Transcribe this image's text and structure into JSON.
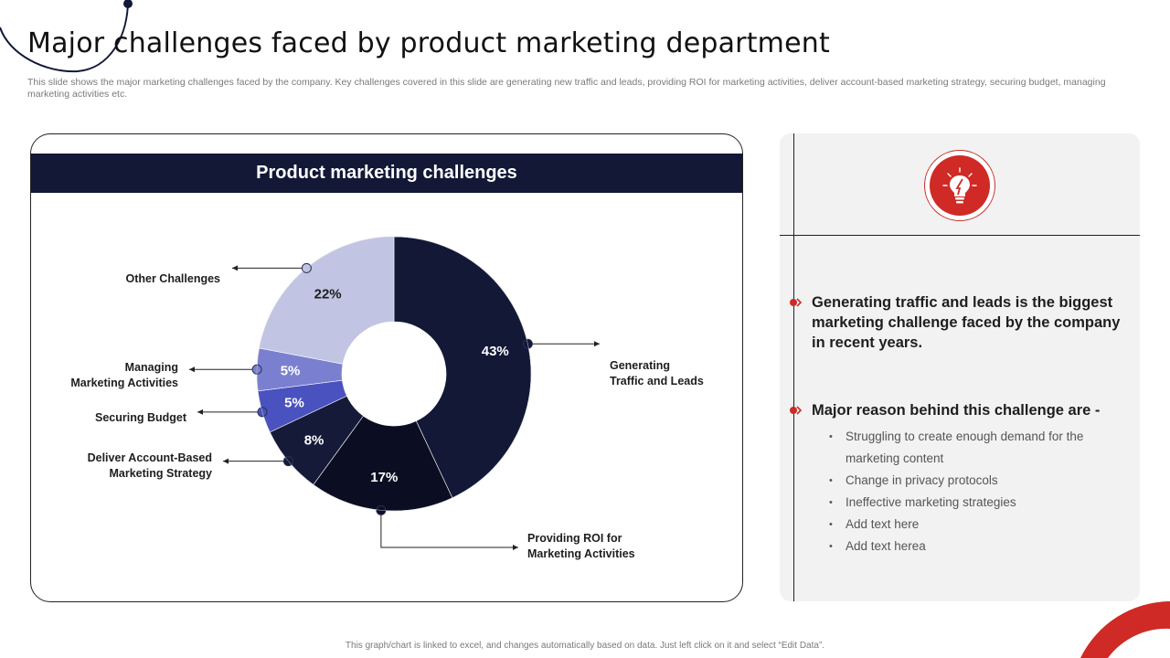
{
  "slide": {
    "title": "Major challenges faced by product marketing department",
    "subtitle": "This slide shows the major marketing challenges faced by the company. Key challenges covered in this slide are generating new traffic and leads, providing ROI  for marketing activities, deliver account-based marketing strategy, securing budget, managing marketing  activities etc.",
    "footer": "This graph/chart is linked to excel, and changes automatically based on data. Just left click on it and select “Edit Data”."
  },
  "colors": {
    "navy": "#121836",
    "dark": "#0b0e22",
    "accent_red": "#cf2a26",
    "lavender": "#c1c4e3",
    "periwinkle": "#7a80cf",
    "royal": "#4a52c0"
  },
  "chart_data": {
    "type": "pie",
    "variant": "donut",
    "title": "Product marketing challenges",
    "series": [
      {
        "name": "Generating Traffic and Leads",
        "label_lines": [
          "Generating",
          "Traffic and Leads"
        ],
        "value": 43,
        "display": "43%",
        "color": "#121836"
      },
      {
        "name": "Providing ROI for Marketing Activities",
        "label_lines": [
          "Providing ROI for",
          "Marketing Activities"
        ],
        "value": 17,
        "display": "17%",
        "color": "#0b0e22"
      },
      {
        "name": "Deliver Account-Based Marketing Strategy",
        "label_lines": [
          "Deliver Account-Based",
          "Marketing Strategy"
        ],
        "value": 8,
        "display": "8%",
        "color": "#151a38"
      },
      {
        "name": "Securing Budget",
        "label_lines": [
          "Securing Budget"
        ],
        "value": 5,
        "display": "5%",
        "color": "#4a52c0"
      },
      {
        "name": "Managing Marketing Activities",
        "label_lines": [
          "Managing",
          "Marketing Activities"
        ],
        "value": 5,
        "display": "5%",
        "color": "#7a80cf"
      },
      {
        "name": "Other Challenges",
        "label_lines": [
          "Other Challenges"
        ],
        "value": 22,
        "display": "22%",
        "color": "#c1c4e3"
      }
    ]
  },
  "panel": {
    "icon": "lightbulb-icon",
    "point1": "Generating traffic and leads is the biggest marketing challenge faced by the company in recent years.",
    "point2": "Major reason behind this challenge are -",
    "reasons": [
      "Struggling to create enough demand for the marketing content",
      "Change  in privacy  protocols",
      "Ineffective  marketing strategies",
      "Add text here",
      "Add text herea"
    ]
  }
}
